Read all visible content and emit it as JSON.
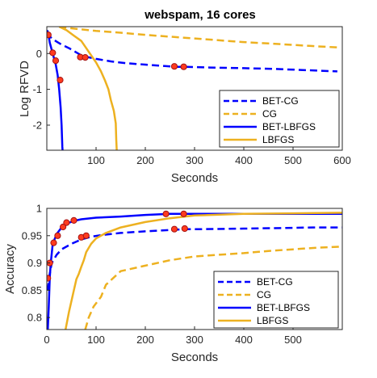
{
  "colors": {
    "bet": "#0000ff",
    "base": "#edb120",
    "marker_fill": "#ff3b1f",
    "marker_edge": "#a31212"
  },
  "chart_data": [
    {
      "type": "line",
      "title": "webspam, 16 cores",
      "xlabel": "Seconds",
      "ylabel": "Log RFVD",
      "xlim": [
        0,
        600
      ],
      "ylim": [
        -2.7,
        0.75
      ],
      "xticks": [
        "100",
        "200",
        "300",
        "400",
        "500",
        "600"
      ],
      "yticks": [
        "0",
        "-1",
        "-2"
      ],
      "legend_position": "bottom-right",
      "series": [
        {
          "name": "BET-CG",
          "style": "dashed",
          "color": "#0000ff",
          "x": [
            2,
            5,
            10,
            20,
            30,
            45,
            60,
            70,
            80,
            100,
            130,
            160,
            200,
            240,
            260,
            280,
            330,
            400,
            460,
            520,
            590
          ],
          "y": [
            0.6,
            0.5,
            0.42,
            0.33,
            0.25,
            0.15,
            0.03,
            -0.05,
            -0.09,
            -0.15,
            -0.22,
            -0.27,
            -0.31,
            -0.35,
            -0.37,
            -0.37,
            -0.39,
            -0.41,
            -0.43,
            -0.46,
            -0.5
          ]
        },
        {
          "name": "CG",
          "style": "dashed",
          "color": "#edb120",
          "x": [
            25,
            40,
            60,
            80,
            100,
            150,
            200,
            250,
            300,
            350,
            400,
            450,
            500,
            550,
            590
          ],
          "y": [
            0.75,
            0.72,
            0.69,
            0.66,
            0.63,
            0.58,
            0.52,
            0.47,
            0.42,
            0.37,
            0.32,
            0.28,
            0.24,
            0.2,
            0.17
          ]
        },
        {
          "name": "BET-LBFGS",
          "style": "solid",
          "color": "#0000ff",
          "x": [
            1,
            3,
            6,
            10,
            14,
            18,
            22,
            25,
            28,
            30,
            31,
            31.5,
            32
          ],
          "y": [
            0.65,
            0.55,
            0.3,
            0.1,
            -0.1,
            -0.3,
            -0.6,
            -1.0,
            -1.5,
            -2.0,
            -2.4,
            -2.6,
            -2.7
          ]
        },
        {
          "name": "LBFGS",
          "style": "solid",
          "color": "#edb120",
          "x": [
            25,
            40,
            55,
            70,
            80,
            90,
            100,
            110,
            118,
            125,
            130,
            136,
            140,
            141,
            142
          ],
          "y": [
            0.75,
            0.65,
            0.5,
            0.35,
            0.15,
            -0.05,
            -0.25,
            -0.5,
            -0.75,
            -1.0,
            -1.3,
            -1.6,
            -1.95,
            -2.4,
            -2.7
          ]
        }
      ],
      "markers": [
        {
          "x": 3,
          "y": 0.52
        },
        {
          "x": 12,
          "y": 0.02
        },
        {
          "x": 18,
          "y": -0.2
        },
        {
          "x": 27,
          "y": -0.74
        },
        {
          "x": 68,
          "y": -0.1
        },
        {
          "x": 78,
          "y": -0.11
        },
        {
          "x": 259,
          "y": -0.36
        },
        {
          "x": 278,
          "y": -0.37
        }
      ]
    },
    {
      "type": "line",
      "title": "",
      "xlabel": "Seconds",
      "ylabel": "Accuracy",
      "xlim": [
        0,
        600
      ],
      "ylim": [
        0.778,
        1.0
      ],
      "xticks": [
        "0",
        "100",
        "200",
        "300",
        "400",
        "500"
      ],
      "yticks": [
        "1",
        "0.95",
        "0.9",
        "0.85",
        "0.8"
      ],
      "legend_position": "bottom-right",
      "series": [
        {
          "name": "BET-CG",
          "style": "dashed",
          "color": "#0000ff",
          "x": [
            2,
            5,
            10,
            20,
            30,
            50,
            70,
            90,
            110,
            150,
            200,
            260,
            280,
            320,
            400,
            480,
            540,
            600
          ],
          "y": [
            0.85,
            0.875,
            0.9,
            0.915,
            0.925,
            0.935,
            0.943,
            0.948,
            0.951,
            0.955,
            0.958,
            0.961,
            0.962,
            0.962,
            0.963,
            0.964,
            0.965,
            0.965
          ]
        },
        {
          "name": "CG",
          "style": "dashed",
          "color": "#edb120",
          "x": [
            78,
            85,
            95,
            110,
            120,
            150,
            200,
            250,
            300,
            350,
            400,
            450,
            500,
            550,
            600
          ],
          "y": [
            0.778,
            0.8,
            0.82,
            0.838,
            0.86,
            0.885,
            0.895,
            0.905,
            0.912,
            0.915,
            0.918,
            0.922,
            0.925,
            0.928,
            0.93
          ]
        },
        {
          "name": "BET-LBFGS",
          "style": "solid",
          "color": "#0000ff",
          "x": [
            2,
            4,
            6,
            8,
            12,
            20,
            30,
            40,
            55,
            70,
            100,
            150,
            200,
            250,
            300,
            400,
            500,
            600
          ],
          "y": [
            0.778,
            0.82,
            0.875,
            0.9,
            0.935,
            0.953,
            0.965,
            0.972,
            0.977,
            0.98,
            0.983,
            0.985,
            0.988,
            0.99,
            0.99,
            0.99,
            0.99,
            0.99
          ]
        },
        {
          "name": "LBFGS",
          "style": "solid",
          "color": "#edb120",
          "x": [
            38,
            45,
            55,
            60,
            65,
            70,
            75,
            80,
            90,
            100,
            120,
            150,
            200,
            250,
            300,
            400,
            500,
            600
          ],
          "y": [
            0.778,
            0.81,
            0.85,
            0.87,
            0.88,
            0.893,
            0.905,
            0.92,
            0.935,
            0.945,
            0.955,
            0.965,
            0.975,
            0.982,
            0.987,
            0.99,
            0.991,
            0.992
          ]
        }
      ],
      "markers": [
        {
          "x": 2,
          "y": 0.872
        },
        {
          "x": 6,
          "y": 0.9
        },
        {
          "x": 14,
          "y": 0.937
        },
        {
          "x": 22,
          "y": 0.95
        },
        {
          "x": 33,
          "y": 0.966
        },
        {
          "x": 40,
          "y": 0.974
        },
        {
          "x": 55,
          "y": 0.978
        },
        {
          "x": 70,
          "y": 0.947
        },
        {
          "x": 80,
          "y": 0.95
        },
        {
          "x": 242,
          "y": 0.99
        },
        {
          "x": 259,
          "y": 0.962
        },
        {
          "x": 278,
          "y": 0.99
        },
        {
          "x": 280,
          "y": 0.963
        }
      ]
    }
  ]
}
